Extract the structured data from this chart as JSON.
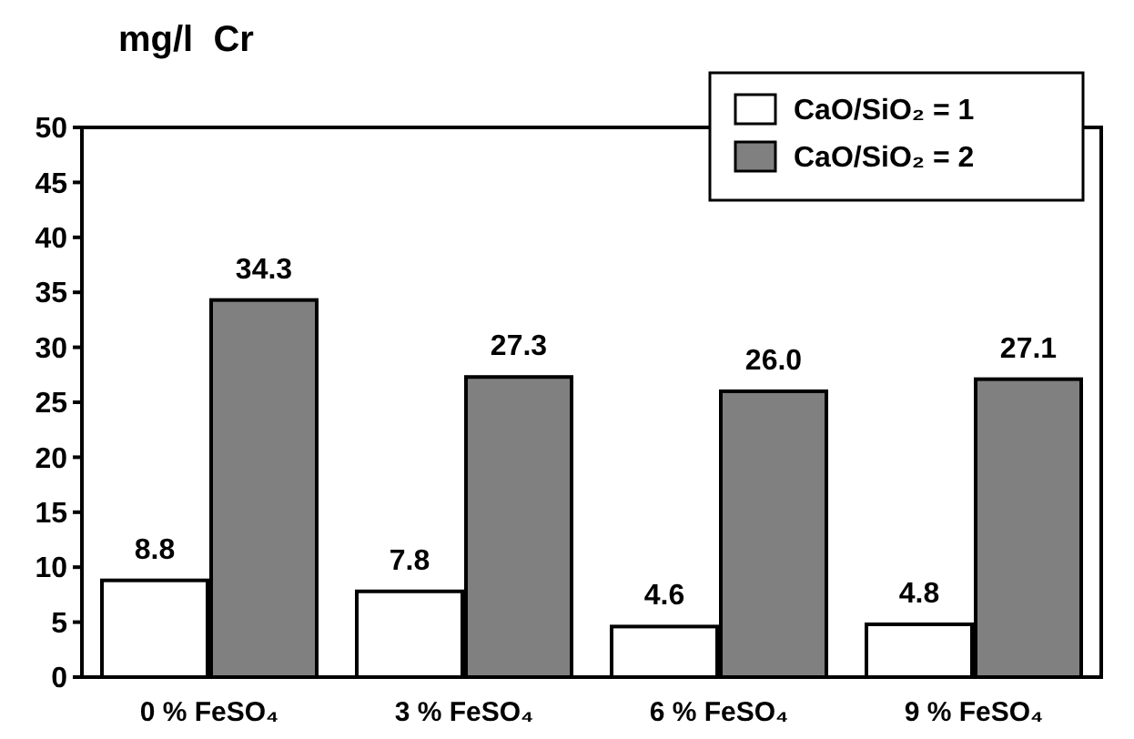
{
  "chart_data": {
    "type": "bar",
    "ylabel": "mg/l  Cr",
    "categories": [
      "0 % FeSO₄",
      "3 % FeSO₄",
      "6 % FeSO₄",
      "9 % FeSO₄"
    ],
    "series": [
      {
        "name": "CaO/SiO₂ = 1",
        "color": "#ffffff",
        "values": [
          8.8,
          7.8,
          4.6,
          4.8
        ],
        "value_labels": [
          "8.8",
          "7.8",
          "4.6",
          "4.8"
        ]
      },
      {
        "name": "CaO/SiO₂ = 2",
        "color": "#808080",
        "values": [
          34.3,
          27.3,
          26.0,
          27.1
        ],
        "value_labels": [
          "34.3",
          "27.3",
          "26.0",
          "27.1"
        ]
      }
    ],
    "ylim": [
      0,
      50
    ],
    "yticks": [
      0,
      5,
      10,
      15,
      20,
      25,
      30,
      35,
      40,
      45,
      50
    ],
    "legend": "top right",
    "grid": false
  }
}
